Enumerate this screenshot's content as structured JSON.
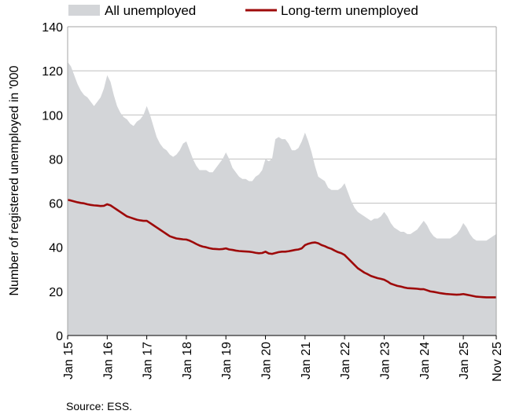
{
  "chart_data": {
    "type": "area",
    "title": "",
    "xlabel": "",
    "ylabel": "Number of registered unemployed in '000",
    "ylim": [
      0,
      140
    ],
    "yticks": [
      0,
      20,
      40,
      60,
      80,
      100,
      120,
      140
    ],
    "x_start": "2015-01",
    "x_end": "2025-11",
    "x_tick_labels": [
      "Jan 15",
      "Jan 16",
      "Jan 17",
      "Jan 18",
      "Jan 19",
      "Jan 20",
      "Jan 21",
      "Jan 22",
      "Jan 23",
      "Jan 24",
      "Jan 25",
      "Nov 25"
    ],
    "x_tick_months": [
      "2015-01",
      "2016-01",
      "2017-01",
      "2018-01",
      "2019-01",
      "2020-01",
      "2021-01",
      "2022-01",
      "2023-01",
      "2024-01",
      "2025-01",
      "2025-11"
    ],
    "grid": true,
    "legend_position": "top",
    "colors": {
      "all": "#d3d5d8",
      "long_term": "#9e0a0a",
      "grid": "#bfbfbf",
      "axis": "#a6a6a6"
    },
    "series": [
      {
        "name": "All unemployed",
        "style": "area",
        "color": "#d3d5d8",
        "points": [
          [
            "2015-01",
            124
          ],
          [
            "2015-02",
            122
          ],
          [
            "2015-03",
            118
          ],
          [
            "2015-04",
            114
          ],
          [
            "2015-05",
            111
          ],
          [
            "2015-06",
            109
          ],
          [
            "2015-07",
            108
          ],
          [
            "2015-08",
            106
          ],
          [
            "2015-09",
            104
          ],
          [
            "2015-10",
            106
          ],
          [
            "2015-11",
            108
          ],
          [
            "2015-12",
            112
          ],
          [
            "2016-01",
            118
          ],
          [
            "2016-02",
            115
          ],
          [
            "2016-03",
            109
          ],
          [
            "2016-04",
            104
          ],
          [
            "2016-05",
            101
          ],
          [
            "2016-06",
            99
          ],
          [
            "2016-07",
            98
          ],
          [
            "2016-08",
            96
          ],
          [
            "2016-09",
            95
          ],
          [
            "2016-10",
            97
          ],
          [
            "2016-11",
            98
          ],
          [
            "2016-12",
            100
          ],
          [
            "2017-01",
            104
          ],
          [
            "2017-02",
            100
          ],
          [
            "2017-03",
            95
          ],
          [
            "2017-04",
            90
          ],
          [
            "2017-05",
            87
          ],
          [
            "2017-06",
            85
          ],
          [
            "2017-07",
            84
          ],
          [
            "2017-08",
            82
          ],
          [
            "2017-09",
            81
          ],
          [
            "2017-10",
            82
          ],
          [
            "2017-11",
            84
          ],
          [
            "2017-12",
            87
          ],
          [
            "2018-01",
            88
          ],
          [
            "2018-02",
            84
          ],
          [
            "2018-03",
            80
          ],
          [
            "2018-04",
            77
          ],
          [
            "2018-05",
            75
          ],
          [
            "2018-06",
            75
          ],
          [
            "2018-07",
            75
          ],
          [
            "2018-08",
            74
          ],
          [
            "2018-09",
            74
          ],
          [
            "2018-10",
            76
          ],
          [
            "2018-11",
            78
          ],
          [
            "2018-12",
            80
          ],
          [
            "2019-01",
            83
          ],
          [
            "2019-02",
            80
          ],
          [
            "2019-03",
            76
          ],
          [
            "2019-04",
            74
          ],
          [
            "2019-05",
            72
          ],
          [
            "2019-06",
            71
          ],
          [
            "2019-07",
            71
          ],
          [
            "2019-08",
            70
          ],
          [
            "2019-09",
            70
          ],
          [
            "2019-10",
            72
          ],
          [
            "2019-11",
            73
          ],
          [
            "2019-12",
            75
          ],
          [
            "2020-01",
            80
          ],
          [
            "2020-02",
            79
          ],
          [
            "2020-03",
            80
          ],
          [
            "2020-04",
            89
          ],
          [
            "2020-05",
            90
          ],
          [
            "2020-06",
            89
          ],
          [
            "2020-07",
            89
          ],
          [
            "2020-08",
            87
          ],
          [
            "2020-09",
            84
          ],
          [
            "2020-10",
            84
          ],
          [
            "2020-11",
            85
          ],
          [
            "2020-12",
            88
          ],
          [
            "2021-01",
            92
          ],
          [
            "2021-02",
            88
          ],
          [
            "2021-03",
            83
          ],
          [
            "2021-04",
            77
          ],
          [
            "2021-05",
            72
          ],
          [
            "2021-06",
            71
          ],
          [
            "2021-07",
            70
          ],
          [
            "2021-08",
            67
          ],
          [
            "2021-09",
            66
          ],
          [
            "2021-10",
            66
          ],
          [
            "2021-11",
            66
          ],
          [
            "2021-12",
            67
          ],
          [
            "2022-01",
            69
          ],
          [
            "2022-02",
            65
          ],
          [
            "2022-03",
            61
          ],
          [
            "2022-04",
            58
          ],
          [
            "2022-05",
            56
          ],
          [
            "2022-06",
            55
          ],
          [
            "2022-07",
            54
          ],
          [
            "2022-08",
            53
          ],
          [
            "2022-09",
            52
          ],
          [
            "2022-10",
            53
          ],
          [
            "2022-11",
            53
          ],
          [
            "2022-12",
            54
          ],
          [
            "2023-01",
            56
          ],
          [
            "2023-02",
            54
          ],
          [
            "2023-03",
            51
          ],
          [
            "2023-04",
            49
          ],
          [
            "2023-05",
            48
          ],
          [
            "2023-06",
            47
          ],
          [
            "2023-07",
            47
          ],
          [
            "2023-08",
            46
          ],
          [
            "2023-09",
            46
          ],
          [
            "2023-10",
            47
          ],
          [
            "2023-11",
            48
          ],
          [
            "2023-12",
            50
          ],
          [
            "2024-01",
            52
          ],
          [
            "2024-02",
            50
          ],
          [
            "2024-03",
            47
          ],
          [
            "2024-04",
            45
          ],
          [
            "2024-05",
            44
          ],
          [
            "2024-06",
            44
          ],
          [
            "2024-07",
            44
          ],
          [
            "2024-08",
            44
          ],
          [
            "2024-09",
            44
          ],
          [
            "2024-10",
            45
          ],
          [
            "2024-11",
            46
          ],
          [
            "2024-12",
            48
          ],
          [
            "2025-01",
            51
          ],
          [
            "2025-02",
            49
          ],
          [
            "2025-03",
            46
          ],
          [
            "2025-04",
            44
          ],
          [
            "2025-05",
            43
          ],
          [
            "2025-06",
            43
          ],
          [
            "2025-07",
            43
          ],
          [
            "2025-08",
            43
          ],
          [
            "2025-09",
            44
          ],
          [
            "2025-10",
            45
          ],
          [
            "2025-11",
            46
          ]
        ]
      },
      {
        "name": "Long-term unemployed",
        "style": "line",
        "color": "#9e0a0a",
        "points": [
          [
            "2015-01",
            61.5
          ],
          [
            "2015-02",
            61.2
          ],
          [
            "2015-03",
            60.8
          ],
          [
            "2015-04",
            60.4
          ],
          [
            "2015-05",
            60.1
          ],
          [
            "2015-06",
            59.9
          ],
          [
            "2015-07",
            59.5
          ],
          [
            "2015-08",
            59.2
          ],
          [
            "2015-09",
            59.0
          ],
          [
            "2015-10",
            58.9
          ],
          [
            "2015-11",
            58.7
          ],
          [
            "2015-12",
            58.8
          ],
          [
            "2016-01",
            59.5
          ],
          [
            "2016-02",
            59.0
          ],
          [
            "2016-03",
            58.0
          ],
          [
            "2016-04",
            57.0
          ],
          [
            "2016-05",
            56.0
          ],
          [
            "2016-06",
            55.0
          ],
          [
            "2016-07",
            54.0
          ],
          [
            "2016-08",
            53.5
          ],
          [
            "2016-09",
            53.0
          ],
          [
            "2016-10",
            52.5
          ],
          [
            "2016-11",
            52.2
          ],
          [
            "2016-12",
            52.0
          ],
          [
            "2017-01",
            52.0
          ],
          [
            "2017-02",
            51.0
          ],
          [
            "2017-03",
            50.0
          ],
          [
            "2017-04",
            49.0
          ],
          [
            "2017-05",
            48.0
          ],
          [
            "2017-06",
            47.0
          ],
          [
            "2017-07",
            46.0
          ],
          [
            "2017-08",
            45.0
          ],
          [
            "2017-09",
            44.5
          ],
          [
            "2017-10",
            44.0
          ],
          [
            "2017-11",
            43.8
          ],
          [
            "2017-12",
            43.6
          ],
          [
            "2018-01",
            43.5
          ],
          [
            "2018-02",
            43.0
          ],
          [
            "2018-03",
            42.3
          ],
          [
            "2018-04",
            41.5
          ],
          [
            "2018-05",
            40.8
          ],
          [
            "2018-06",
            40.3
          ],
          [
            "2018-07",
            40.0
          ],
          [
            "2018-08",
            39.6
          ],
          [
            "2018-09",
            39.3
          ],
          [
            "2018-10",
            39.2
          ],
          [
            "2018-11",
            39.1
          ],
          [
            "2018-12",
            39.2
          ],
          [
            "2019-01",
            39.5
          ],
          [
            "2019-02",
            39.0
          ],
          [
            "2019-03",
            38.8
          ],
          [
            "2019-04",
            38.5
          ],
          [
            "2019-05",
            38.3
          ],
          [
            "2019-06",
            38.2
          ],
          [
            "2019-07",
            38.1
          ],
          [
            "2019-08",
            38.0
          ],
          [
            "2019-09",
            37.8
          ],
          [
            "2019-10",
            37.5
          ],
          [
            "2019-11",
            37.3
          ],
          [
            "2019-12",
            37.4
          ],
          [
            "2020-01",
            38.0
          ],
          [
            "2020-02",
            37.2
          ],
          [
            "2020-03",
            37.0
          ],
          [
            "2020-04",
            37.4
          ],
          [
            "2020-05",
            37.8
          ],
          [
            "2020-06",
            38.0
          ],
          [
            "2020-07",
            38.0
          ],
          [
            "2020-08",
            38.2
          ],
          [
            "2020-09",
            38.5
          ],
          [
            "2020-10",
            38.8
          ],
          [
            "2020-11",
            39.0
          ],
          [
            "2020-12",
            39.5
          ],
          [
            "2021-01",
            41.0
          ],
          [
            "2021-02",
            41.6
          ],
          [
            "2021-03",
            42.0
          ],
          [
            "2021-04",
            42.2
          ],
          [
            "2021-05",
            41.8
          ],
          [
            "2021-06",
            41.0
          ],
          [
            "2021-07",
            40.5
          ],
          [
            "2021-08",
            39.8
          ],
          [
            "2021-09",
            39.3
          ],
          [
            "2021-10",
            38.5
          ],
          [
            "2021-11",
            37.8
          ],
          [
            "2021-12",
            37.3
          ],
          [
            "2022-01",
            36.5
          ],
          [
            "2022-02",
            35.0
          ],
          [
            "2022-03",
            33.5
          ],
          [
            "2022-04",
            32.0
          ],
          [
            "2022-05",
            30.5
          ],
          [
            "2022-06",
            29.5
          ],
          [
            "2022-07",
            28.5
          ],
          [
            "2022-08",
            27.8
          ],
          [
            "2022-09",
            27.0
          ],
          [
            "2022-10",
            26.5
          ],
          [
            "2022-11",
            26.0
          ],
          [
            "2022-12",
            25.7
          ],
          [
            "2023-01",
            25.3
          ],
          [
            "2023-02",
            24.5
          ],
          [
            "2023-03",
            23.5
          ],
          [
            "2023-04",
            23.0
          ],
          [
            "2023-05",
            22.5
          ],
          [
            "2023-06",
            22.2
          ],
          [
            "2023-07",
            21.8
          ],
          [
            "2023-08",
            21.5
          ],
          [
            "2023-09",
            21.4
          ],
          [
            "2023-10",
            21.3
          ],
          [
            "2023-11",
            21.2
          ],
          [
            "2023-12",
            21.0
          ],
          [
            "2024-01",
            21.0
          ],
          [
            "2024-02",
            20.5
          ],
          [
            "2024-03",
            20.0
          ],
          [
            "2024-04",
            19.8
          ],
          [
            "2024-05",
            19.5
          ],
          [
            "2024-06",
            19.2
          ],
          [
            "2024-07",
            19.0
          ],
          [
            "2024-08",
            18.8
          ],
          [
            "2024-09",
            18.7
          ],
          [
            "2024-10",
            18.6
          ],
          [
            "2024-11",
            18.5
          ],
          [
            "2024-12",
            18.6
          ],
          [
            "2025-01",
            18.8
          ],
          [
            "2025-02",
            18.5
          ],
          [
            "2025-03",
            18.2
          ],
          [
            "2025-04",
            17.9
          ],
          [
            "2025-05",
            17.6
          ],
          [
            "2025-06",
            17.5
          ],
          [
            "2025-07",
            17.4
          ],
          [
            "2025-08",
            17.3
          ],
          [
            "2025-09",
            17.3
          ],
          [
            "2025-10",
            17.3
          ],
          [
            "2025-11",
            17.3
          ]
        ]
      }
    ],
    "source_note": "Source: ESS."
  }
}
